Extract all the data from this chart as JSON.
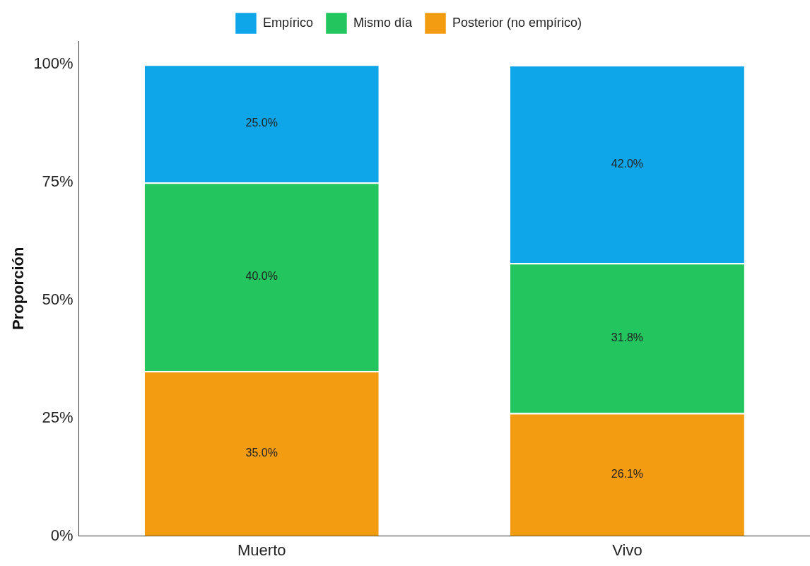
{
  "chart_data": {
    "type": "bar",
    "stacked": true,
    "ylabel": "Proporción",
    "categories": [
      "Muerto",
      "Vivo"
    ],
    "series": [
      {
        "name": "Posterior (no empírico)",
        "color": "#f39c12",
        "values": [
          35.0,
          26.1
        ],
        "value_labels": [
          "35.0%",
          "26.1%"
        ]
      },
      {
        "name": "Mismo día",
        "color": "#22c55e",
        "values": [
          40.0,
          31.8
        ],
        "value_labels": [
          "40.0%",
          "31.8%"
        ]
      },
      {
        "name": "Empírico",
        "color": "#0ea5e9",
        "values": [
          25.0,
          42.0
        ],
        "value_labels": [
          "25.0%",
          "42.0%"
        ]
      }
    ],
    "ylim": [
      0,
      105
    ],
    "yticks": [
      {
        "value": 0,
        "label": "0%"
      },
      {
        "value": 25,
        "label": "25%"
      },
      {
        "value": 50,
        "label": "50%"
      },
      {
        "value": 75,
        "label": "75%"
      },
      {
        "value": 100,
        "label": "100%"
      }
    ],
    "grid": false,
    "legend": "top"
  }
}
